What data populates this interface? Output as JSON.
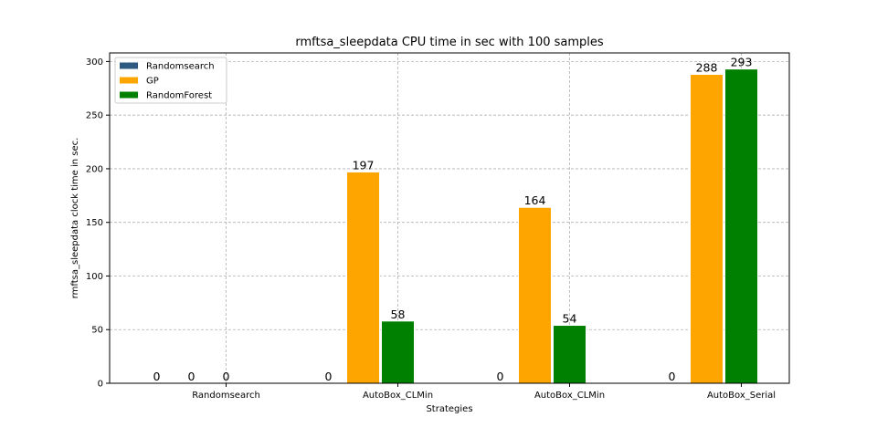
{
  "chart_data": {
    "type": "bar",
    "title": "rmftsa_sleepdata CPU time in sec with 100 samples",
    "xlabel": "Strategies",
    "ylabel": "rmftsa_sleepdata clock time in sec.",
    "categories": [
      "Randomsearch",
      "AutoBox_CLMin",
      "AutoBox_CLMin",
      "AutoBox_Serial"
    ],
    "series": [
      {
        "name": "Randomsearch",
        "color": "#2e5a82",
        "values": [
          0,
          0,
          0,
          0
        ]
      },
      {
        "name": "GP",
        "color": "#ffa500",
        "values": [
          0,
          197,
          164,
          288
        ]
      },
      {
        "name": "RandomForest",
        "color": "#008000",
        "values": [
          0,
          58,
          54,
          293
        ]
      }
    ],
    "data_labels": [
      [
        "0",
        "0",
        "0",
        "0"
      ],
      [
        "0",
        "197",
        "164",
        "288"
      ],
      [
        "0",
        "58",
        "54",
        "293"
      ]
    ],
    "ylim": [
      0,
      308
    ],
    "yticks": [
      0,
      50,
      100,
      150,
      200,
      250,
      300
    ],
    "grid": true,
    "legend_position": "top-left"
  }
}
